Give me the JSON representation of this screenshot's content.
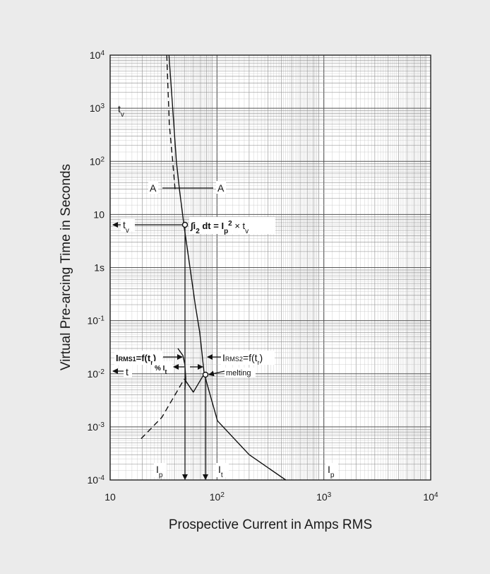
{
  "chart_data": {
    "type": "line",
    "xlabel": "Prospective Current in Amps RMS",
    "ylabel": "Virtual Pre-arcing Time in Seconds",
    "xscale": "log",
    "yscale": "log",
    "xlim": [
      10,
      10000
    ],
    "ylim": [
      0.0001,
      10000
    ],
    "grid": true,
    "x_ticks": [
      {
        "value": 10,
        "base": "10",
        "exp": ""
      },
      {
        "value": 100,
        "base": "10",
        "exp": "2"
      },
      {
        "value": 1000,
        "base": "10",
        "exp": "3"
      },
      {
        "value": 10000,
        "base": "10",
        "exp": "4"
      }
    ],
    "y_ticks": [
      {
        "value": 10000,
        "base": "10",
        "exp": "4"
      },
      {
        "value": 1000,
        "base": "10",
        "exp": "3"
      },
      {
        "value": 100,
        "base": "10",
        "exp": "2"
      },
      {
        "value": 10,
        "base": "10",
        "exp": ""
      },
      {
        "value": 1,
        "base": "1s",
        "exp": ""
      },
      {
        "value": 0.1,
        "base": "10",
        "exp": "-1"
      },
      {
        "value": 0.01,
        "base": "10",
        "exp": "-2"
      },
      {
        "value": 0.001,
        "base": "10",
        "exp": "-3"
      },
      {
        "value": 0.0001,
        "base": "10",
        "exp": "-4"
      }
    ],
    "series": [
      {
        "style": "dashed",
        "points": [
          [
            33.9,
            10000
          ],
          [
            35.8,
            500
          ],
          [
            38.5,
            100
          ],
          [
            40.5,
            30
          ]
        ]
      },
      {
        "style": "solid",
        "points": [
          [
            35.5,
            10000
          ],
          [
            38.5,
            1000
          ],
          [
            41.7,
            100
          ],
          [
            44.5,
            30
          ],
          [
            49.5,
            5.5
          ],
          [
            55.9,
            1
          ],
          [
            62.6,
            0.2
          ],
          [
            68.9,
            0.06
          ],
          [
            75.9,
            0.01
          ]
        ]
      },
      {
        "style": "solid",
        "points": [
          [
            49.5,
            0.008
          ],
          [
            60,
            0.0045
          ],
          [
            75.9,
            0.01
          ],
          [
            101,
            0.0013
          ],
          [
            200,
            0.0003
          ],
          [
            440,
            0.0001
          ]
        ]
      },
      {
        "style": "dashed",
        "points": [
          [
            19.5,
            0.0006
          ],
          [
            30.4,
            0.0015
          ],
          [
            49.5,
            0.008
          ]
        ]
      },
      {
        "style": "solid",
        "points": [
          [
            43,
            0.03
          ],
          [
            48,
            0.022
          ],
          [
            50,
            0.015
          ],
          [
            51,
            0.008
          ],
          [
            50,
            0.005
          ]
        ]
      }
    ],
    "annotations": {
      "tv_axis": "t",
      "tv_sub": "v",
      "tv_arrow": "t",
      "aa_left": "A",
      "aa_right": "A",
      "integral": "∫i",
      "integral_sub": "2",
      "integral_mid": " dt = I",
      "integral_p": "p",
      "integral_sq": "2",
      "integral_x": " × t",
      "integral_v": "v",
      "irms1": "I",
      "irms1_sub": "RMS",
      "irms1_sub2": "1",
      "irms1_rest": "=f(t",
      "irms1_r": "r",
      "irms1_end": ")",
      "irms2": "I",
      "irms2_sub": "RMS",
      "irms2_sub2": "2",
      "irms2_rest": "=f(t",
      "irms2_r": "r",
      "irms2_end": ")",
      "pct": "% I",
      "pct_sub": "t",
      "t_left": "t",
      "melting": "melting",
      "ip_left": "I",
      "ip_left_sub": "p",
      "it": "I",
      "it_sub": "t",
      "ip_right": "I",
      "ip_right_sub": "p"
    }
  }
}
